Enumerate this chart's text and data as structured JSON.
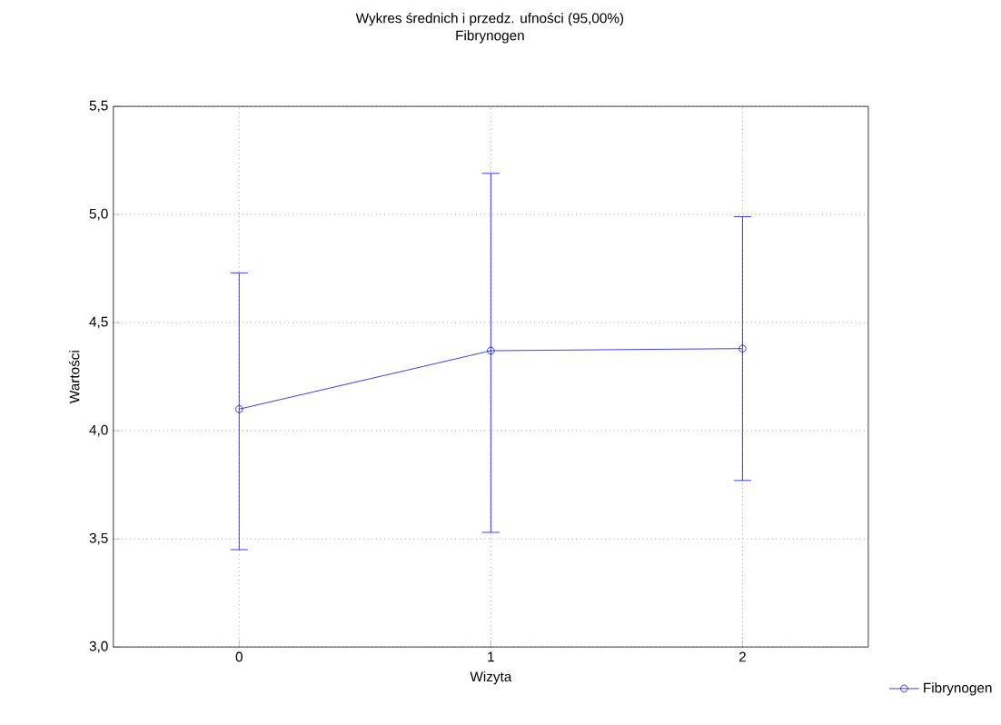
{
  "chart_data": {
    "type": "line",
    "title": "Wykres średnich i przedz. ufności (95,00%)",
    "subtitle": "Fibrynogen",
    "xlabel": "Wizyta",
    "ylabel": "Wartości",
    "categories": [
      "0",
      "1",
      "2"
    ],
    "series": [
      {
        "name": "Fibrynogen",
        "color": "#0000ff",
        "values": [
          4.1,
          4.37,
          4.38
        ],
        "errors": [
          [
            3.45,
            4.73
          ],
          [
            3.53,
            5.19
          ],
          [
            3.77,
            4.99
          ]
        ]
      }
    ],
    "ylim": [
      3.0,
      5.5
    ],
    "yticks": [
      {
        "value": 3.0,
        "label": "3,0"
      },
      {
        "value": 3.5,
        "label": "3,5"
      },
      {
        "value": 4.0,
        "label": "4,0"
      },
      {
        "value": 4.5,
        "label": "4,5"
      },
      {
        "value": 5.0,
        "label": "5,0"
      },
      {
        "value": 5.5,
        "label": "5,5"
      }
    ],
    "grid": true,
    "legend": "bottom right",
    "marker": "circle",
    "line_style": "solid"
  }
}
